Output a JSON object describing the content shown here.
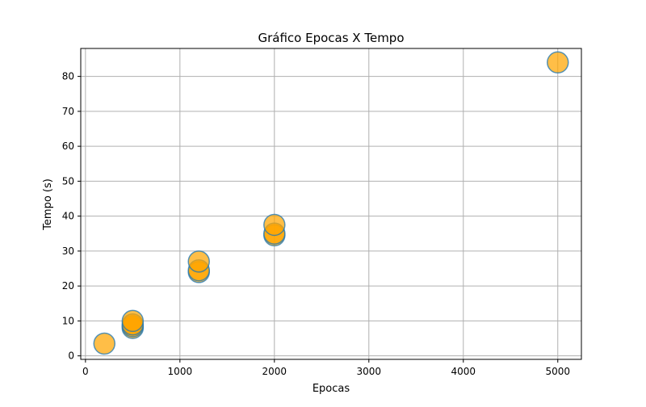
{
  "chart_data": {
    "type": "scatter",
    "title": "Gráfico Epocas X Tempo",
    "xlabel": "Epocas",
    "ylabel": "Tempo (s)",
    "xlim": [
      -50,
      5250
    ],
    "ylim": [
      -1,
      88
    ],
    "xticks": [
      0,
      1000,
      2000,
      3000,
      4000,
      5000
    ],
    "yticks": [
      0,
      10,
      20,
      30,
      40,
      50,
      60,
      70,
      80
    ],
    "grid": true,
    "marker_fill": "#FFA500",
    "marker_edge": "#1f77b4",
    "points": [
      {
        "x": 200,
        "y": 3.5
      },
      {
        "x": 500,
        "y": 8.0
      },
      {
        "x": 500,
        "y": 8.5
      },
      {
        "x": 500,
        "y": 9.0
      },
      {
        "x": 500,
        "y": 10.0
      },
      {
        "x": 1200,
        "y": 24.0
      },
      {
        "x": 1200,
        "y": 24.5
      },
      {
        "x": 1200,
        "y": 27.0
      },
      {
        "x": 2000,
        "y": 34.5
      },
      {
        "x": 2000,
        "y": 35.0
      },
      {
        "x": 2000,
        "y": 37.5
      },
      {
        "x": 5000,
        "y": 84.0
      }
    ]
  }
}
